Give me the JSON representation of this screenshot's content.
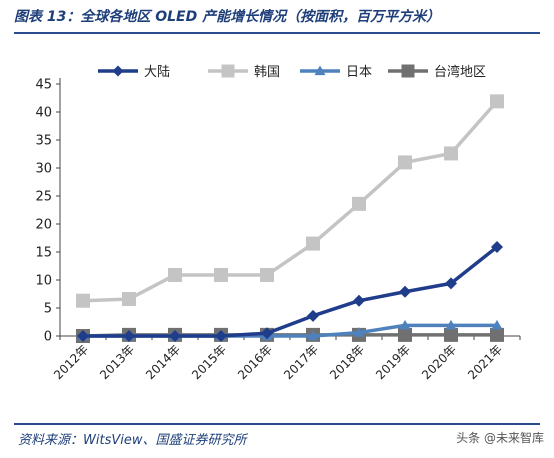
{
  "title": "图表 13：全球各地区 OLED 产能增长情况（按面积，百万平方米）",
  "source": "资料来源：WitsView、国盛证券研究所",
  "watermark": "头条 @未来智库",
  "chart_data": {
    "type": "line",
    "categories": [
      "2012年",
      "2013年",
      "2014年",
      "2015年",
      "2016年",
      "2017年",
      "2018年",
      "2019年",
      "2020年",
      "2021年"
    ],
    "ylim": [
      0,
      45
    ],
    "yticks": [
      0,
      5,
      10,
      15,
      20,
      25,
      30,
      35,
      40,
      45
    ],
    "grid": false,
    "legend": "top",
    "series": [
      {
        "name": "大陆",
        "color": "#1f3d8a",
        "marker": "diamond",
        "values": [
          0,
          0,
          0,
          0,
          0.5,
          3.6,
          6.3,
          7.9,
          9.4,
          15.9
        ]
      },
      {
        "name": "韩国",
        "color": "#c4c4c4",
        "marker": "square",
        "values": [
          6.3,
          6.6,
          10.9,
          10.9,
          10.9,
          16.5,
          23.6,
          31.0,
          32.6,
          41.9
        ]
      },
      {
        "name": "日本",
        "color": "#4f81bd",
        "marker": "triangle",
        "values": [
          0,
          0,
          0,
          0,
          0,
          0,
          0.6,
          1.9,
          1.9,
          1.9
        ]
      },
      {
        "name": "台湾地区",
        "color": "#707070",
        "marker": "square",
        "values": [
          0,
          0.2,
          0.2,
          0.2,
          0.2,
          0.2,
          0.2,
          0.2,
          0.2,
          0.2
        ]
      }
    ]
  }
}
